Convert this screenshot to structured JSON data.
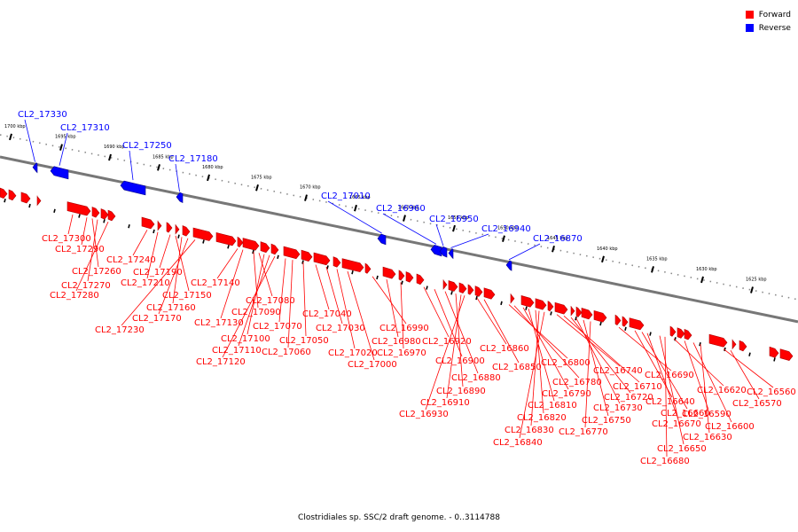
{
  "legend": {
    "forward_label": "Forward",
    "reverse_label": "Reverse",
    "forward_color": "#ff0000",
    "reverse_color": "#0000ff"
  },
  "caption": "Clostridiales sp. SSC/2 draft genome. - 0..3114788",
  "scale_ticks": [
    "1700 kbp",
    "1695 kbp",
    "1690 kbp",
    "1685 kbp",
    "1680 kbp",
    "1675 kbp",
    "1670 kbp",
    "1665 kbp",
    "1660 kbp",
    "1655 kbp",
    "1650 kbp",
    "1645 kbp",
    "1640 kbp",
    "1635 kbp",
    "1630 kbp",
    "1625 kbp"
  ],
  "reverse_genes": [
    "CL2_17330",
    "CL2_17310",
    "CL2_17250",
    "CL2_17180",
    "CL2_17010",
    "CL2_16960",
    "CL2_16950",
    "CL2_16940",
    "CL2_16870"
  ],
  "forward_genes": [
    "CL2_17300",
    "CL2_17290",
    "CL2_17260",
    "CL2_17270",
    "CL2_17280",
    "CL2_17240",
    "CL2_17210",
    "CL2_17190",
    "CL2_17150",
    "CL2_17160",
    "CL2_17170",
    "CL2_17230",
    "CL2_17140",
    "CL2_17130",
    "CL2_17090",
    "CL2_17080",
    "CL2_17100",
    "CL2_17110",
    "CL2_17120",
    "CL2_17070",
    "CL2_17060",
    "CL2_17050",
    "CL2_17040",
    "CL2_17030",
    "CL2_17020",
    "CL2_17000",
    "CL2_16990",
    "CL2_16980",
    "CL2_16970",
    "CL2_16920",
    "CL2_16900",
    "CL2_16880",
    "CL2_16890",
    "CL2_16910",
    "CL2_16930",
    "CL2_16860",
    "CL2_16850",
    "CL2_16800",
    "CL2_16780",
    "CL2_16790",
    "CL2_16810",
    "CL2_16820",
    "CL2_16830",
    "CL2_16840",
    "CL2_16740",
    "CL2_16710",
    "CL2_16720",
    "CL2_16730",
    "CL2_16750",
    "CL2_16770",
    "CL2_16690",
    "CL2_16640",
    "CL2_16660",
    "CL2_16670",
    "CL2_16650",
    "CL2_16680",
    "CL2_16620",
    "CL2_16590",
    "CL2_16600",
    "CL2_16630",
    "CL2_16560",
    "CL2_16570"
  ]
}
